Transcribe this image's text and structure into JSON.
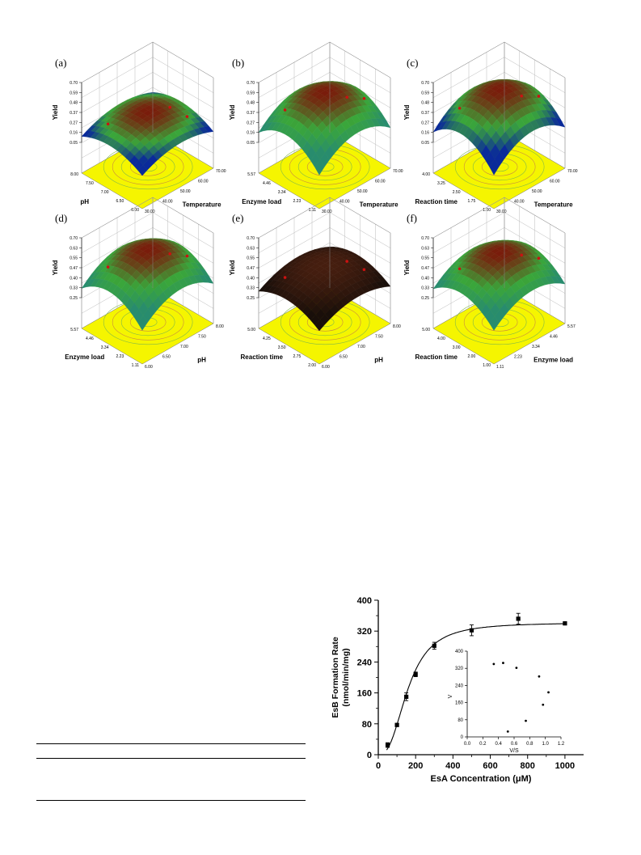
{
  "surface_panels": [
    {
      "label": "(a)",
      "z_ticks": [
        "0.70",
        "0.59",
        "0.48",
        "0.37",
        "0.27",
        "0.16",
        "0.05"
      ],
      "z_label": "Yield",
      "left_axis": {
        "name": "pH",
        "ticks": [
          "8.00",
          "7.50",
          "7.00",
          "6.50",
          "6.00"
        ]
      },
      "right_axis": {
        "name": "Temperature",
        "ticks": [
          "30.00",
          "40.00",
          "50.00",
          "60.00",
          "70.00"
        ]
      },
      "surface": "rainbow",
      "peak": 0.45
    },
    {
      "label": "(b)",
      "z_ticks": [
        "0.70",
        "0.59",
        "0.48",
        "0.37",
        "0.27",
        "0.16",
        "0.05"
      ],
      "z_label": "Yield",
      "left_axis": {
        "name": "Enzyme load",
        "ticks": [
          "5.57",
          "4.46",
          "3.34",
          "2.23",
          "1.11"
        ]
      },
      "right_axis": {
        "name": "Temperature",
        "ticks": [
          "30.00",
          "40.00",
          "50.00",
          "60.00",
          "70.00"
        ]
      },
      "surface": "green",
      "peak": 0.85
    },
    {
      "label": "(c)",
      "z_ticks": [
        "0.70",
        "0.59",
        "0.48",
        "0.37",
        "0.27",
        "0.16",
        "0.05"
      ],
      "z_label": "Yield",
      "left_axis": {
        "name": "Reaction time",
        "ticks": [
          "4.00",
          "3.25",
          "2.50",
          "1.75",
          "1.00"
        ]
      },
      "right_axis": {
        "name": "Temperature",
        "ticks": [
          "30.00",
          "40.00",
          "50.00",
          "60.00",
          "70.00"
        ]
      },
      "surface": "rainbow-deep",
      "peak": 0.9
    },
    {
      "label": "(d)",
      "z_ticks": [
        "0.70",
        "0.63",
        "0.55",
        "0.47",
        "0.40",
        "0.33",
        "0.25"
      ],
      "z_label": "Yield",
      "left_axis": {
        "name": "Enzyme load",
        "ticks": [
          "5.57",
          "4.46",
          "3.34",
          "2.23",
          "1.11"
        ]
      },
      "right_axis": {
        "name": "pH",
        "ticks": [
          "6.00",
          "6.50",
          "7.00",
          "7.50",
          "8.00"
        ]
      },
      "surface": "green",
      "peak": 0.8
    },
    {
      "label": "(e)",
      "z_ticks": [
        "0.70",
        "0.63",
        "0.55",
        "0.47",
        "0.40",
        "0.33",
        "0.25"
      ],
      "z_label": "Yield",
      "left_axis": {
        "name": "Reaction time",
        "ticks": [
          "5.00",
          "4.25",
          "3.50",
          "2.75",
          "2.00"
        ]
      },
      "right_axis": {
        "name": "pH",
        "ticks": [
          "6.00",
          "6.50",
          "7.00",
          "7.50",
          "8.00"
        ]
      },
      "surface": "dark",
      "peak": 0.5
    },
    {
      "label": "(f)",
      "z_ticks": [
        "0.70",
        "0.63",
        "0.55",
        "0.47",
        "0.40",
        "0.33",
        "0.25"
      ],
      "z_label": "Yield",
      "left_axis": {
        "name": "Reaction time",
        "ticks": [
          "5.00",
          "4.00",
          "3.00",
          "2.00",
          "1.00"
        ]
      },
      "right_axis": {
        "name": "Enzyme load",
        "ticks": [
          "1.11",
          "2.23",
          "3.34",
          "4.46",
          "5.57"
        ]
      },
      "surface": "green",
      "peak": 0.75
    }
  ],
  "colors": {
    "contour_floor": "#f5f500",
    "contour_line": "#7fb84a",
    "surface_top": "#7a1a0a",
    "surface_mid": "#3aa63a",
    "surface_low": "#0a2a9a",
    "point": "#cc1111"
  },
  "chart_data": {
    "type": "scatter",
    "xlabel": "EsA Concentration (μM)",
    "ylabel_line1": "EsB Formation Rate",
    "ylabel_line2": "(nmol/min/mg)",
    "xlim": [
      0,
      1100
    ],
    "ylim": [
      0,
      400
    ],
    "x_ticks": [
      0,
      200,
      400,
      600,
      800,
      1000
    ],
    "y_ticks": [
      0,
      80,
      160,
      240,
      320,
      400
    ],
    "points": [
      {
        "x": 50,
        "y": 25,
        "err": 6
      },
      {
        "x": 100,
        "y": 77,
        "err": 4
      },
      {
        "x": 150,
        "y": 150,
        "err": 10
      },
      {
        "x": 200,
        "y": 208,
        "err": 6
      },
      {
        "x": 300,
        "y": 282,
        "err": 9
      },
      {
        "x": 500,
        "y": 322,
        "err": 14
      },
      {
        "x": 750,
        "y": 352,
        "err": 14
      },
      {
        "x": 1000,
        "y": 340,
        "err": 3
      }
    ],
    "fit": {
      "vmax": 342,
      "k": 160,
      "n": 2.6
    },
    "inset": {
      "xlabel": "V/S",
      "ylabel": "V",
      "xlim": [
        0,
        1.2
      ],
      "ylim": [
        0,
        400
      ],
      "x_ticks": [
        "0.0",
        "0.2",
        "0.4",
        "0.6",
        "0.8",
        "1.0",
        "1.2"
      ],
      "y_ticks": [
        "0",
        "80",
        "160",
        "240",
        "320",
        "400"
      ],
      "points": [
        {
          "x": 0.34,
          "y": 340
        },
        {
          "x": 0.46,
          "y": 345
        },
        {
          "x": 0.52,
          "y": 25
        },
        {
          "x": 0.63,
          "y": 322
        },
        {
          "x": 0.75,
          "y": 75
        },
        {
          "x": 0.92,
          "y": 282
        },
        {
          "x": 0.97,
          "y": 150
        },
        {
          "x": 1.04,
          "y": 208
        }
      ]
    }
  }
}
